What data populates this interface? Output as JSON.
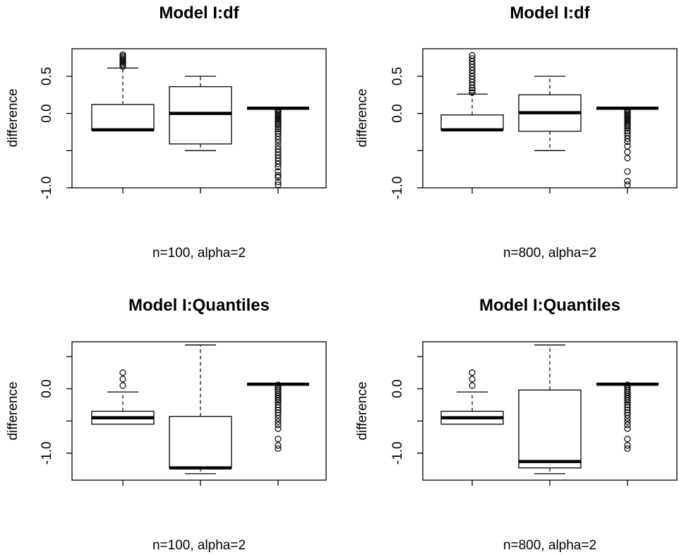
{
  "chart_data": [
    {
      "type": "box",
      "title": "Model I:df",
      "ylabel": "difference",
      "xlabel": "n=100, alpha=2",
      "ylim": [
        -1.0,
        0.87
      ],
      "yticks": [
        0.5,
        0.0,
        -0.5,
        -1.0
      ],
      "ytick_labels": [
        "0.5",
        "0.0",
        "",
        "-1.0"
      ],
      "boxes": [
        {
          "whisker_low": -0.22,
          "q1": -0.22,
          "median": -0.22,
          "q3": 0.12,
          "whisker_high": 0.61,
          "outliers": [
            0.63,
            0.65,
            0.67,
            0.69,
            0.71,
            0.73,
            0.75,
            0.77,
            0.79
          ]
        },
        {
          "whisker_low": -0.5,
          "q1": -0.41,
          "median": 0.0,
          "q3": 0.36,
          "whisker_high": 0.5,
          "outliers": []
        },
        {
          "whisker_low": 0.07,
          "q1": 0.07,
          "median": 0.07,
          "q3": 0.07,
          "whisker_high": 0.07,
          "outliers": [
            0.05,
            0.03,
            0.01,
            -0.01,
            -0.03,
            -0.05,
            -0.07,
            -0.09,
            -0.11,
            -0.13,
            -0.15,
            -0.18,
            -0.21,
            -0.24,
            -0.27,
            -0.31,
            -0.35,
            -0.39,
            -0.44,
            -0.48,
            -0.52,
            -0.56,
            -0.6,
            -0.64,
            -0.68,
            -0.72,
            -0.78,
            -0.83,
            -0.86,
            -0.92,
            -0.96
          ]
        }
      ]
    },
    {
      "type": "box",
      "title": "Model I:df",
      "ylabel": "difference",
      "xlabel": "n=800, alpha=2",
      "ylim": [
        -1.0,
        0.87
      ],
      "yticks": [
        0.5,
        0.0,
        -0.5,
        -1.0
      ],
      "ytick_labels": [
        "0.5",
        "0.0",
        "",
        "-1.0"
      ],
      "boxes": [
        {
          "whisker_low": -0.22,
          "q1": -0.22,
          "median": -0.22,
          "q3": -0.02,
          "whisker_high": 0.26,
          "outliers": [
            0.28,
            0.31,
            0.34,
            0.38,
            0.42,
            0.46,
            0.5,
            0.54,
            0.58,
            0.62,
            0.66,
            0.7,
            0.74,
            0.78
          ]
        },
        {
          "whisker_low": -0.5,
          "q1": -0.24,
          "median": 0.01,
          "q3": 0.25,
          "whisker_high": 0.5,
          "outliers": []
        },
        {
          "whisker_low": 0.07,
          "q1": 0.07,
          "median": 0.07,
          "q3": 0.07,
          "whisker_high": 0.07,
          "outliers": [
            0.05,
            0.03,
            0.01,
            -0.01,
            -0.03,
            -0.05,
            -0.07,
            -0.09,
            -0.11,
            -0.13,
            -0.15,
            -0.17,
            -0.2,
            -0.23,
            -0.26,
            -0.3,
            -0.34,
            -0.38,
            -0.44,
            -0.52,
            -0.6,
            -0.78,
            -0.91,
            -0.96
          ]
        }
      ]
    },
    {
      "type": "box",
      "title": "Model I:Quantiles",
      "ylabel": "difference",
      "xlabel": "n=100, alpha=2",
      "ylim": [
        -1.42,
        0.73
      ],
      "yticks": [
        0.5,
        0.0,
        -0.5,
        -1.0
      ],
      "ytick_labels": [
        "",
        "0.0",
        "",
        "-1.0"
      ],
      "boxes": [
        {
          "whisker_low": -0.55,
          "q1": -0.55,
          "median": -0.45,
          "q3": -0.35,
          "whisker_high": -0.05,
          "outliers": [
            0.05,
            0.15,
            0.25
          ]
        },
        {
          "whisker_low": -1.32,
          "q1": -1.23,
          "median": -1.23,
          "q3": -0.43,
          "whisker_high": 0.68,
          "outliers": []
        },
        {
          "whisker_low": 0.07,
          "q1": 0.07,
          "median": 0.07,
          "q3": 0.07,
          "whisker_high": 0.07,
          "outliers": [
            0.06,
            0.03,
            0.0,
            -0.03,
            -0.06,
            -0.09,
            -0.12,
            -0.15,
            -0.18,
            -0.21,
            -0.25,
            -0.29,
            -0.33,
            -0.37,
            -0.41,
            -0.46,
            -0.51,
            -0.56,
            -0.62,
            -0.78,
            -0.88,
            -0.93
          ]
        }
      ]
    },
    {
      "type": "box",
      "title": "Model I:Quantiles",
      "ylabel": "difference",
      "xlabel": "n=800, alpha=2",
      "ylim": [
        -1.42,
        0.73
      ],
      "yticks": [
        0.5,
        0.0,
        -0.5,
        -1.0
      ],
      "ytick_labels": [
        "",
        "0.0",
        "",
        "-1.0"
      ],
      "boxes": [
        {
          "whisker_low": -0.55,
          "q1": -0.55,
          "median": -0.45,
          "q3": -0.35,
          "whisker_high": -0.05,
          "outliers": [
            0.05,
            0.15,
            0.25
          ]
        },
        {
          "whisker_low": -1.32,
          "q1": -1.23,
          "median": -1.13,
          "q3": -0.02,
          "whisker_high": 0.68,
          "outliers": []
        },
        {
          "whisker_low": 0.07,
          "q1": 0.07,
          "median": 0.07,
          "q3": 0.07,
          "whisker_high": 0.07,
          "outliers": [
            0.06,
            0.03,
            0.0,
            -0.03,
            -0.06,
            -0.09,
            -0.12,
            -0.15,
            -0.18,
            -0.21,
            -0.25,
            -0.29,
            -0.33,
            -0.37,
            -0.41,
            -0.46,
            -0.51,
            -0.56,
            -0.62,
            -0.78,
            -0.88,
            -0.93
          ]
        }
      ]
    }
  ]
}
